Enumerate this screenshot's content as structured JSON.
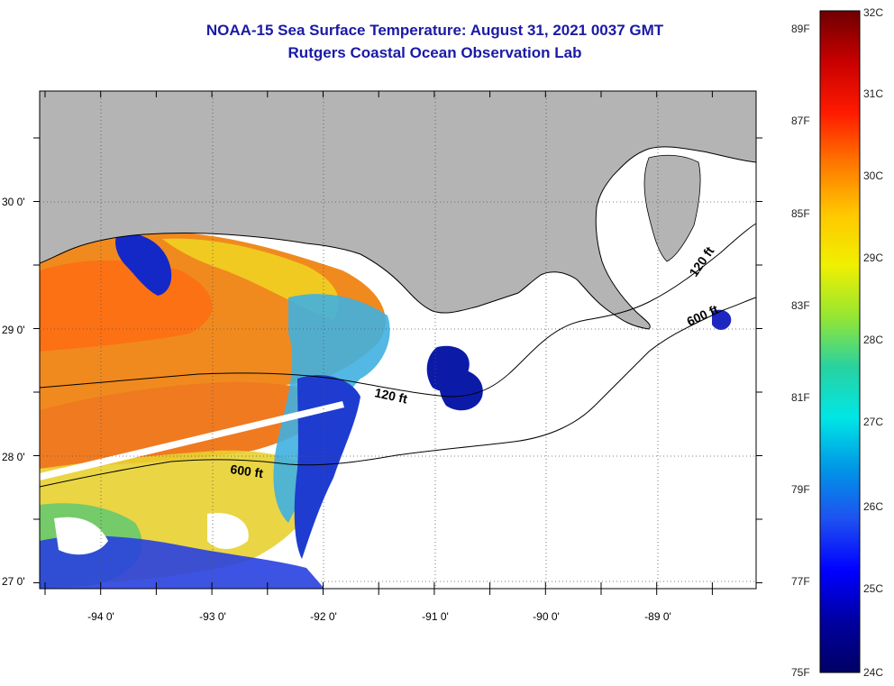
{
  "header": {
    "title": "NOAA-15 Sea Surface Temperature:  August 31, 2021 0037 GMT",
    "subtitle": "Rutgers Coastal Ocean Observation Lab"
  },
  "map": {
    "lon_ticks": [
      "-94 0'",
      "-93 0'",
      "-92 0'",
      "-91 0'",
      "-90 0'",
      "-89 0'"
    ],
    "lat_ticks": [
      "30 0'",
      "29 0'",
      "28 0'",
      "27 0'"
    ],
    "contours": [
      {
        "label": "120 ft"
      },
      {
        "label": "600 ft"
      },
      {
        "label": "120 ft"
      },
      {
        "label": "600 ft"
      }
    ],
    "colors": {
      "land": "#b4b4b4",
      "ocean_nodata": "#ffffff"
    }
  },
  "colorbar": {
    "f_labels": [
      "89F",
      "87F",
      "85F",
      "83F",
      "81F",
      "79F",
      "77F",
      "75F"
    ],
    "c_labels": [
      "32C",
      "31C",
      "30C",
      "29C",
      "28C",
      "27C",
      "26C",
      "25C",
      "24C"
    ],
    "stops": [
      "#6e0000",
      "#c80000",
      "#ff1a00",
      "#ff7800",
      "#ffc800",
      "#f0f000",
      "#96e632",
      "#28d2a0",
      "#00e6e6",
      "#0096e6",
      "#1e50f0",
      "#0000ff",
      "#0000a0",
      "#000064"
    ]
  }
}
